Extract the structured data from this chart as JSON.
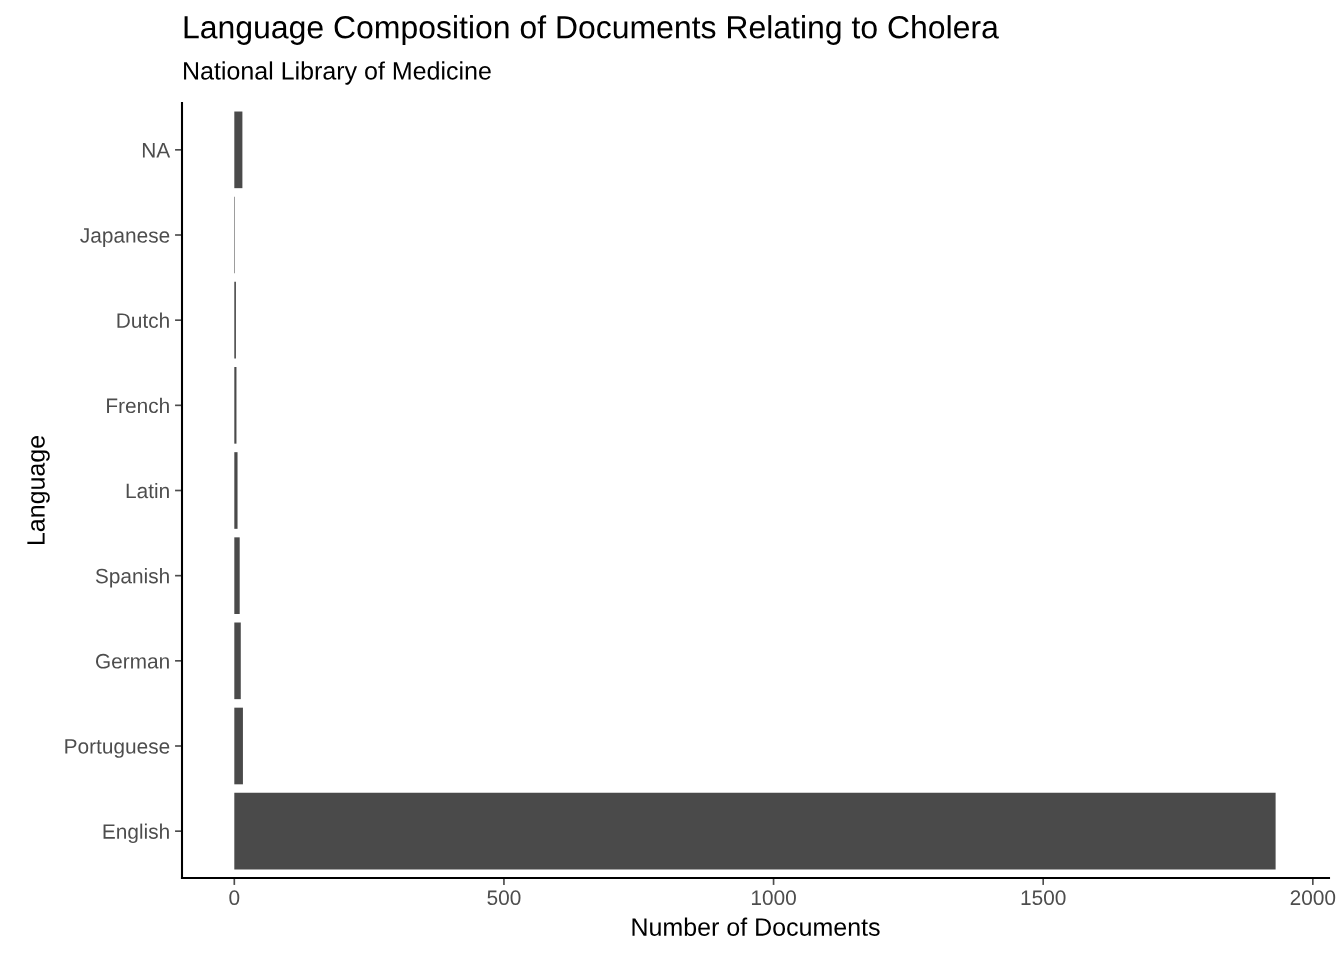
{
  "chart_data": {
    "type": "bar",
    "orientation": "horizontal",
    "title": "Language Composition of Documents Relating to Cholera",
    "subtitle": "National Library of Medicine",
    "xlabel": "Number of Documents",
    "ylabel": "Language",
    "categories": [
      "NA",
      "Japanese",
      "Dutch",
      "French",
      "Latin",
      "Spanish",
      "German",
      "Portuguese",
      "English"
    ],
    "values": [
      15,
      1,
      3,
      4,
      6,
      10,
      12,
      16,
      1931
    ],
    "color": "#4a4a4a",
    "xlim": [
      -97,
      2030
    ],
    "xticks": [
      0,
      500,
      1000,
      1500,
      2000
    ],
    "grid": false
  }
}
